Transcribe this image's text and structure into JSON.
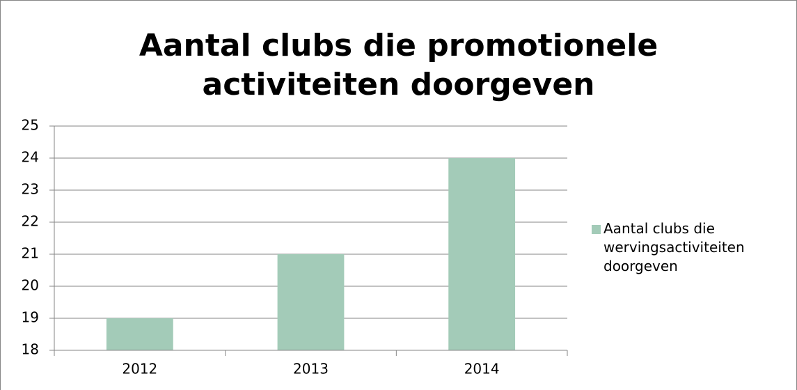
{
  "chart_data": {
    "type": "bar",
    "title": "Aantal clubs die promotionele activiteiten doorgeven",
    "categories": [
      "2012",
      "2013",
      "2014"
    ],
    "series": [
      {
        "name": "Aantal clubs die wervingsactiviteiten doorgeven",
        "color": "#a3cbb8",
        "values": [
          19,
          21,
          24
        ]
      }
    ],
    "ylim": [
      18,
      25
    ],
    "yticks": [
      18,
      19,
      20,
      21,
      22,
      23,
      24,
      25
    ],
    "grid": true,
    "legend": "right"
  }
}
